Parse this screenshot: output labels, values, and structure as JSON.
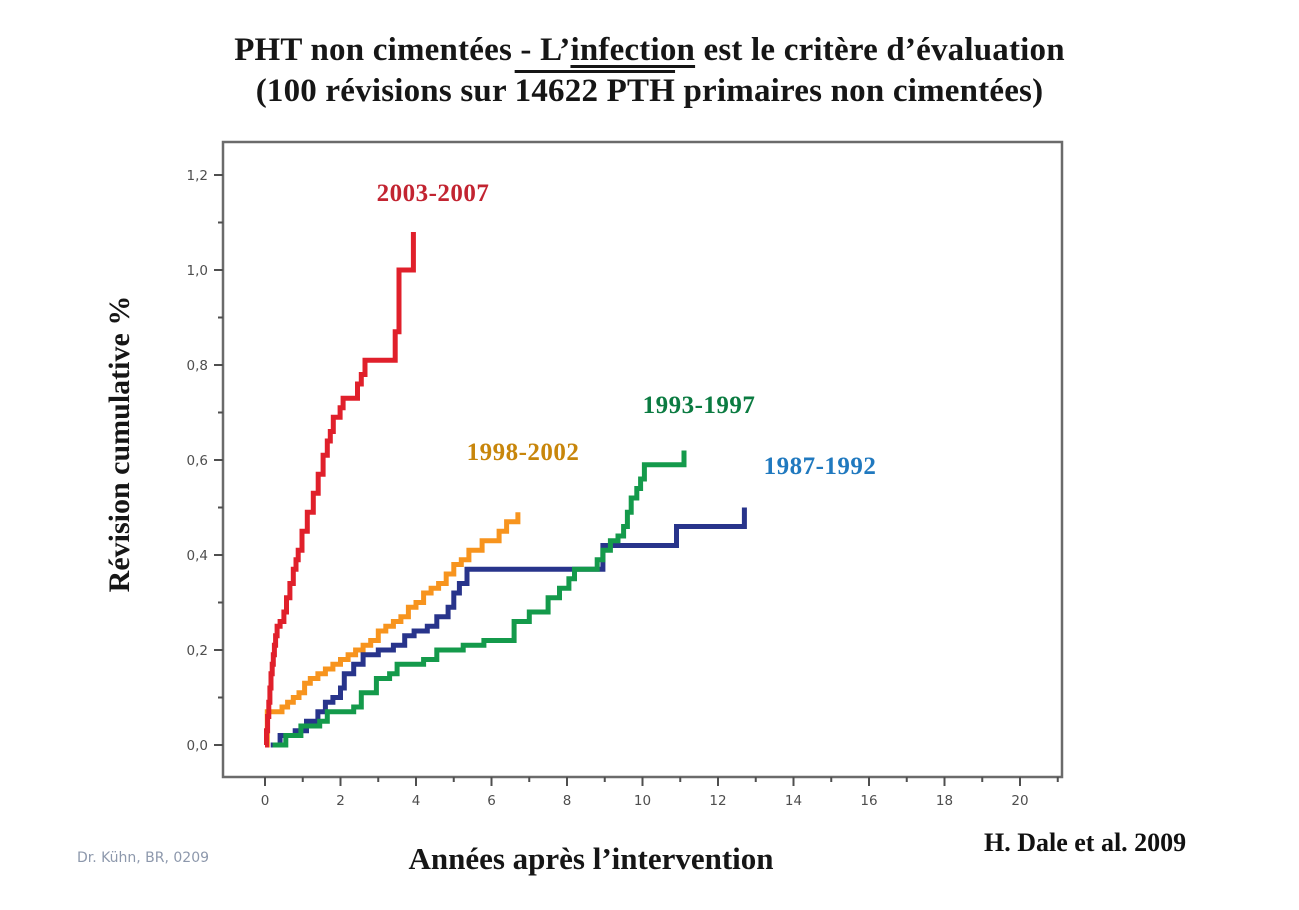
{
  "title": {
    "line1_prefix": "PHT non cimentées - L’",
    "line1_emphasis": "infection",
    "line1_suffix": " est le critère d’évaluation",
    "line2_prefix": "(100 révisions sur ",
    "line2_emphasis": "14622 PTH",
    "line2_suffix": " primaires non cimentées)"
  },
  "annotations": {
    "credit_left": "Dr. Kühn, BR, 0209",
    "citation_right": "H. Dale et al. 2009"
  },
  "chart_data": {
    "type": "line",
    "step": "after",
    "title": "PHT non cimentées - L’infection est le critère d’évaluation (100 révisions sur 14622 PTH primaires non cimentées)",
    "xlabel": "Années après l’intervention",
    "ylabel": "Révision cumulative %",
    "xlim": [
      -1.1,
      21.1
    ],
    "ylim": [
      -0.07,
      1.27
    ],
    "grid": false,
    "legend_position": "inline-annotations",
    "frame_color": "#6b6b6b",
    "tick_color": "#4f4f4f",
    "tick_label_color": "#4e4e4e",
    "x_ticks": [
      0,
      2,
      4,
      6,
      8,
      10,
      12,
      14,
      16,
      18,
      20
    ],
    "x_tick_labels": [
      "0",
      "2",
      "4",
      "6",
      "8",
      "10",
      "12",
      "14",
      "16",
      "18",
      "20"
    ],
    "x_minor_ticks": [
      1,
      3,
      5,
      7,
      9,
      11,
      13,
      15,
      17,
      19,
      21
    ],
    "y_ticks": [
      0,
      0.2,
      0.4,
      0.6,
      0.8,
      1.0,
      1.2
    ],
    "y_tick_labels": [
      "0,0",
      "0,2",
      "0,4",
      "0,6",
      "0,8",
      "1,0",
      "1,2"
    ],
    "y_minor_ticks": [
      0.1,
      0.3,
      0.5,
      0.7,
      0.9,
      1.1
    ],
    "series": [
      {
        "name": "2003-2007",
        "color": "#e0202b",
        "label_color": "#c22431",
        "points": [
          [
            0,
            0
          ],
          [
            0.04,
            0.03
          ],
          [
            0.07,
            0.06
          ],
          [
            0.1,
            0.09
          ],
          [
            0.13,
            0.12
          ],
          [
            0.16,
            0.15
          ],
          [
            0.19,
            0.17
          ],
          [
            0.22,
            0.19
          ],
          [
            0.25,
            0.21
          ],
          [
            0.28,
            0.23
          ],
          [
            0.32,
            0.25
          ],
          [
            0.4,
            0.26
          ],
          [
            0.5,
            0.28
          ],
          [
            0.57,
            0.31
          ],
          [
            0.66,
            0.34
          ],
          [
            0.75,
            0.37
          ],
          [
            0.82,
            0.39
          ],
          [
            0.88,
            0.41
          ],
          [
            0.98,
            0.45
          ],
          [
            1.12,
            0.49
          ],
          [
            1.28,
            0.53
          ],
          [
            1.41,
            0.57
          ],
          [
            1.54,
            0.61
          ],
          [
            1.65,
            0.64
          ],
          [
            1.73,
            0.66
          ],
          [
            1.81,
            0.69
          ],
          [
            1.99,
            0.71
          ],
          [
            2.07,
            0.73
          ],
          [
            2.45,
            0.76
          ],
          [
            2.55,
            0.78
          ],
          [
            2.65,
            0.81
          ],
          [
            3.45,
            0.87
          ],
          [
            3.55,
            1.0
          ],
          [
            3.93,
            1.08
          ]
        ]
      },
      {
        "name": "1998-2002",
        "color": "#f7941e",
        "label_color": "#c8860b",
        "points": [
          [
            0.02,
            0
          ],
          [
            0.06,
            0.07
          ],
          [
            0.45,
            0.08
          ],
          [
            0.6,
            0.09
          ],
          [
            0.75,
            0.1
          ],
          [
            0.9,
            0.11
          ],
          [
            1.05,
            0.13
          ],
          [
            1.2,
            0.14
          ],
          [
            1.4,
            0.15
          ],
          [
            1.6,
            0.16
          ],
          [
            1.8,
            0.17
          ],
          [
            2.0,
            0.18
          ],
          [
            2.2,
            0.19
          ],
          [
            2.4,
            0.2
          ],
          [
            2.6,
            0.21
          ],
          [
            2.8,
            0.22
          ],
          [
            3.0,
            0.24
          ],
          [
            3.2,
            0.25
          ],
          [
            3.4,
            0.26
          ],
          [
            3.6,
            0.27
          ],
          [
            3.8,
            0.29
          ],
          [
            4.0,
            0.3
          ],
          [
            4.2,
            0.32
          ],
          [
            4.4,
            0.33
          ],
          [
            4.6,
            0.34
          ],
          [
            4.8,
            0.36
          ],
          [
            5.0,
            0.38
          ],
          [
            5.2,
            0.39
          ],
          [
            5.4,
            0.41
          ],
          [
            5.75,
            0.43
          ],
          [
            6.2,
            0.45
          ],
          [
            6.4,
            0.47
          ],
          [
            6.7,
            0.49
          ]
        ]
      },
      {
        "name": "1993-1997",
        "color": "#149a4b",
        "label_color": "#0b7b41",
        "points": [
          [
            0.2,
            0
          ],
          [
            0.55,
            0.02
          ],
          [
            0.95,
            0.04
          ],
          [
            1.45,
            0.05
          ],
          [
            1.65,
            0.07
          ],
          [
            2.35,
            0.08
          ],
          [
            2.55,
            0.11
          ],
          [
            2.95,
            0.14
          ],
          [
            3.3,
            0.15
          ],
          [
            3.5,
            0.17
          ],
          [
            4.2,
            0.18
          ],
          [
            4.55,
            0.2
          ],
          [
            5.25,
            0.21
          ],
          [
            5.8,
            0.22
          ],
          [
            6.6,
            0.26
          ],
          [
            7.0,
            0.28
          ],
          [
            7.5,
            0.31
          ],
          [
            7.8,
            0.33
          ],
          [
            8.05,
            0.35
          ],
          [
            8.2,
            0.37
          ],
          [
            8.8,
            0.39
          ],
          [
            8.95,
            0.41
          ],
          [
            9.15,
            0.43
          ],
          [
            9.35,
            0.44
          ],
          [
            9.5,
            0.46
          ],
          [
            9.6,
            0.49
          ],
          [
            9.7,
            0.52
          ],
          [
            9.85,
            0.54
          ],
          [
            9.95,
            0.56
          ],
          [
            10.05,
            0.59
          ],
          [
            11.1,
            0.62
          ]
        ]
      },
      {
        "name": "1987-1992",
        "color": "#28348b",
        "label_color": "#2079bf",
        "points": [
          [
            0.15,
            0
          ],
          [
            0.4,
            0.02
          ],
          [
            0.8,
            0.03
          ],
          [
            1.1,
            0.05
          ],
          [
            1.4,
            0.07
          ],
          [
            1.6,
            0.09
          ],
          [
            1.8,
            0.1
          ],
          [
            2.0,
            0.12
          ],
          [
            2.1,
            0.15
          ],
          [
            2.35,
            0.17
          ],
          [
            2.6,
            0.19
          ],
          [
            3.0,
            0.2
          ],
          [
            3.4,
            0.21
          ],
          [
            3.7,
            0.23
          ],
          [
            3.95,
            0.24
          ],
          [
            4.3,
            0.25
          ],
          [
            4.55,
            0.27
          ],
          [
            4.85,
            0.29
          ],
          [
            5.0,
            0.32
          ],
          [
            5.15,
            0.34
          ],
          [
            5.35,
            0.37
          ],
          [
            8.95,
            0.42
          ],
          [
            10.9,
            0.46
          ],
          [
            12.7,
            0.5
          ]
        ]
      }
    ],
    "draw_order": [
      1,
      3,
      2,
      0
    ]
  }
}
